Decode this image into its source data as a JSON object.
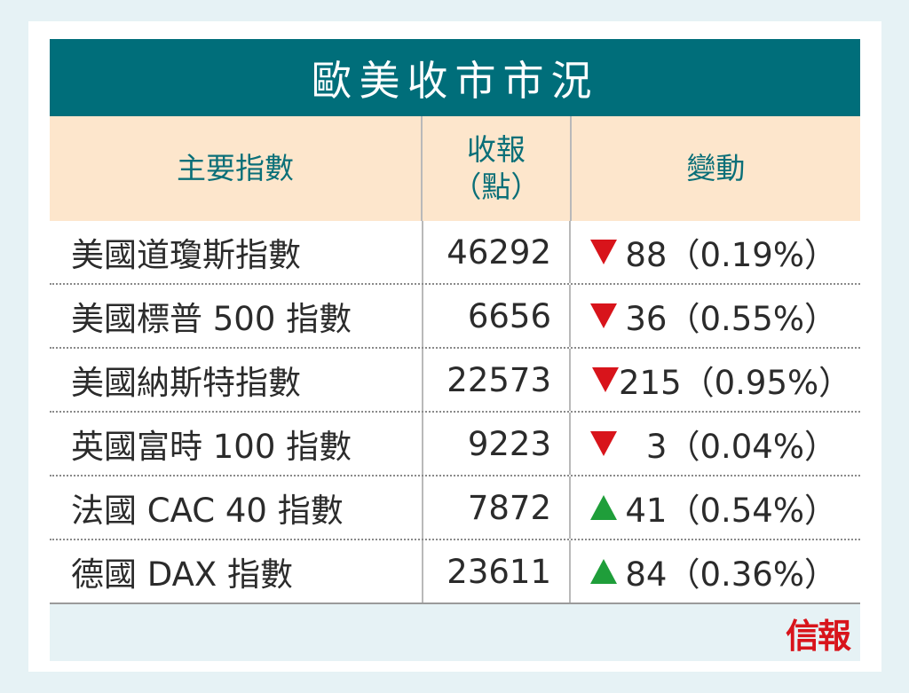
{
  "title": "歐美收市市況",
  "headers": {
    "index": "主要指數",
    "close_line1": "收報",
    "close_line2": "（點）",
    "change": "變動"
  },
  "rows": [
    {
      "name": "美國道瓊斯指數",
      "close": "46292",
      "direction": "down",
      "change": "88（0.19%）"
    },
    {
      "name": "美國標普 500 指數",
      "close": "6656",
      "direction": "down",
      "change": "36（0.55%）"
    },
    {
      "name": "美國納斯特指數",
      "close": "22573",
      "direction": "down",
      "change": "215（0.95%）"
    },
    {
      "name": "英國富時 100 指數",
      "close": "9223",
      "direction": "down",
      "change": "3（0.04%）"
    },
    {
      "name": "法國 CAC 40 指數",
      "close": "7872",
      "direction": "up",
      "change": "41（0.54%）"
    },
    {
      "name": "德國 DAX 指數",
      "close": "23611",
      "direction": "up",
      "change": "84（0.36%）"
    }
  ],
  "logo": "信報",
  "colors": {
    "title_bg": "#006e7a",
    "header_bg": "#fde6cc",
    "down": "#d8141b",
    "up": "#1f9e3a"
  },
  "icons": {
    "down": "down-triangle-icon",
    "up": "up-triangle-icon"
  }
}
